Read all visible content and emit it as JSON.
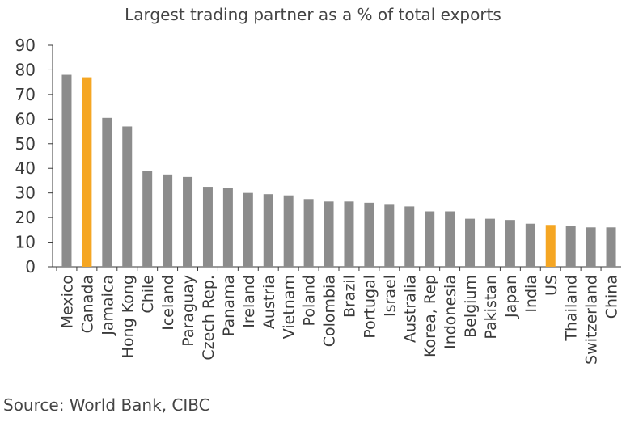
{
  "chart_data": {
    "type": "bar",
    "title": "Largest trading partner as a % of total exports",
    "xlabel": "",
    "ylabel": "",
    "ylim": [
      0,
      90
    ],
    "yticks": [
      0,
      10,
      20,
      30,
      40,
      50,
      60,
      70,
      80,
      90
    ],
    "grid": false,
    "legend": "none",
    "categories": [
      "Mexico",
      "Canada",
      "Jamaica",
      "Hong Kong",
      "Chile",
      "Iceland",
      "Paraguay",
      "Czech Rep.",
      "Panama",
      "Ireland",
      "Austria",
      "Vietnam",
      "Poland",
      "Colombia",
      "Brazil",
      "Portugal",
      "Israel",
      "Australia",
      "Korea, Rep",
      "Indonesia",
      "Belgium",
      "Pakistan",
      "Japan",
      "India",
      "US",
      "Thailand",
      "Switzerland",
      "China"
    ],
    "values": [
      78,
      77,
      60.5,
      57,
      39,
      37.5,
      36.5,
      32.5,
      32,
      30,
      29.5,
      29,
      27.5,
      26.5,
      26.5,
      26,
      25.5,
      24.5,
      22.5,
      22.5,
      19.5,
      19.5,
      19,
      17.5,
      17,
      16.5,
      16,
      16
    ],
    "highlighted": [
      "Canada",
      "US"
    ],
    "colors": {
      "default": "#8c8c8c",
      "highlight": "#f5a623",
      "axis": "#3a3a3a"
    },
    "source": "Source: World Bank, CIBC"
  }
}
